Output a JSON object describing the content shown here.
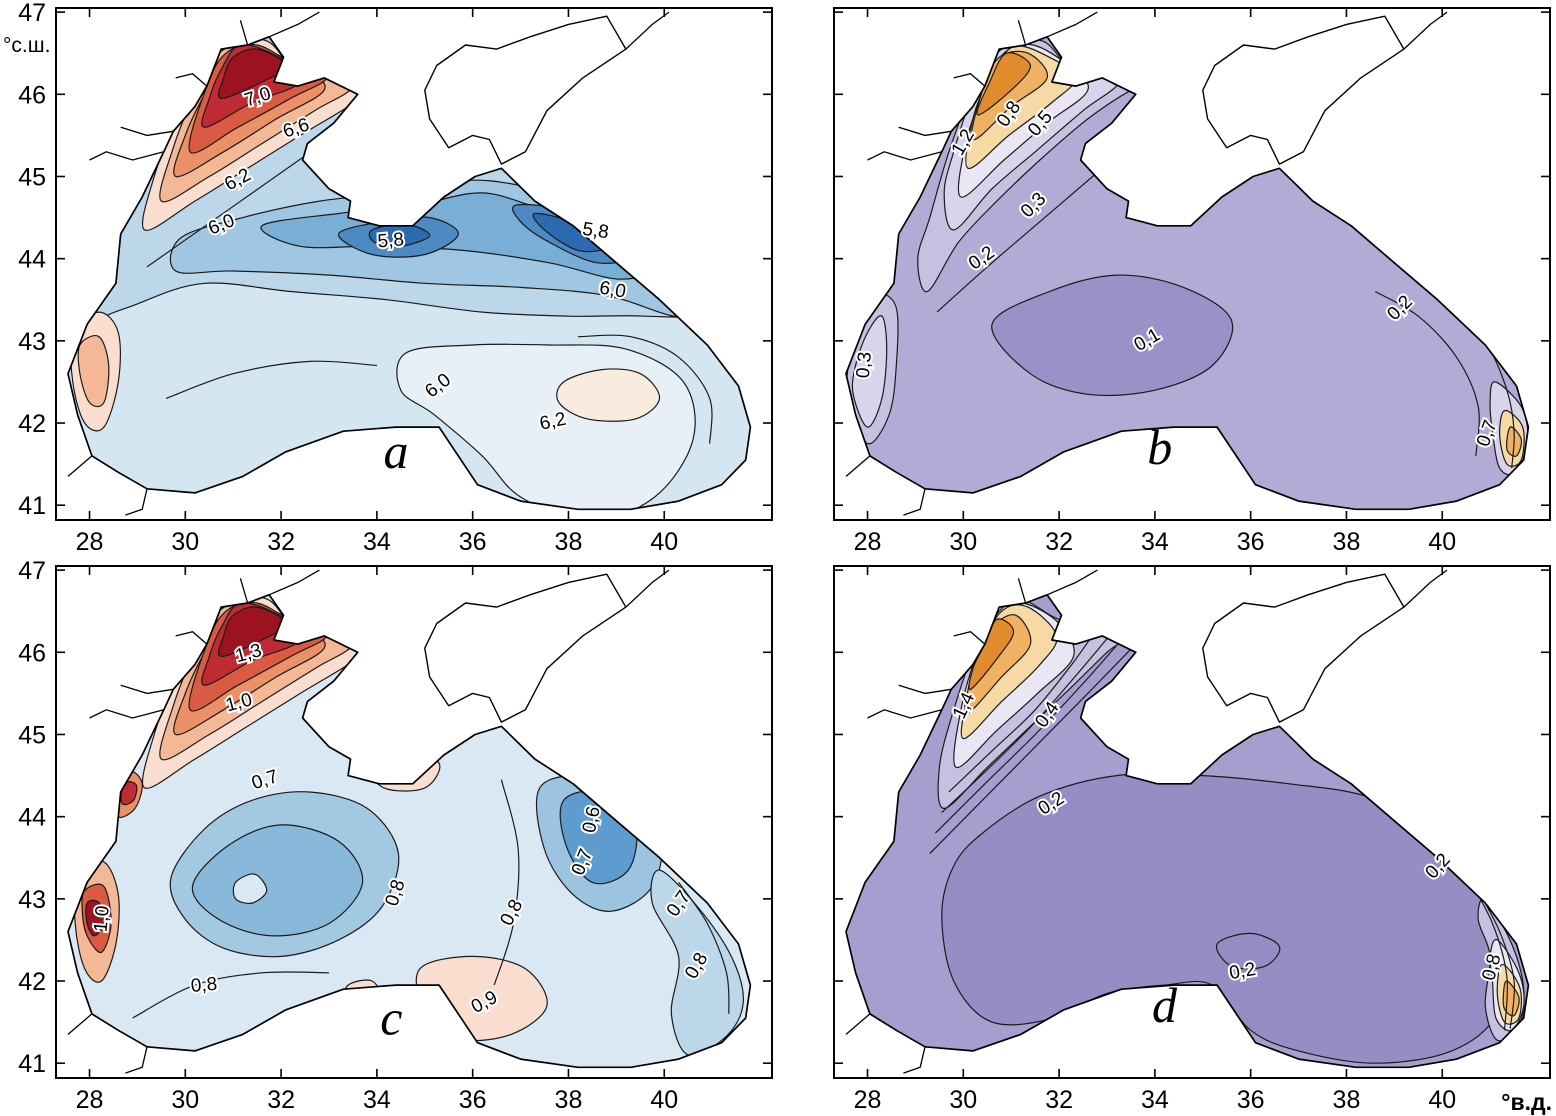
{
  "chart_data": {
    "type": "heatmap",
    "subtype": "contour-map-grid",
    "description": "Four filled-contour maps of the Black Sea region arranged in a 2x2 grid, panels a, b (top) and c, d (bottom). Panels a and c use a red(high, northwest)-to-blue diverging palette; panels b and d use an orange(high, northwest & southeast)-to-purple palette.",
    "x": {
      "label": "°в.д.",
      "ticks": [
        28,
        30,
        32,
        34,
        36,
        38,
        40
      ],
      "range": [
        27.3,
        42.25
      ]
    },
    "y": {
      "label": "°с.ш.",
      "ticks": [
        47,
        46,
        45,
        44,
        43,
        42,
        41
      ],
      "range": [
        40.82,
        47.05
      ]
    },
    "palette": {
      "a_base": "#bdd7ea",
      "a_pale": "#d5e6f3",
      "a_paler": "#e7f0f7",
      "cream": "#f8ecdf",
      "a_mid": "#9fc6e2",
      "a_deep": "#79aed6",
      "a_deeper": "#4d8ac4",
      "a_dark": "#2b6ab0",
      "pink_pale": "#f9ded0",
      "salmon_lt": "#f4b897",
      "salmon": "#ec9067",
      "red": "#da5a44",
      "red_dark": "#c02b33",
      "red_deep": "#9c1220",
      "b_base": "#b3abd6",
      "b_dark": "#9b91c9",
      "lav_lt": "#c6c0e1",
      "lav_lter": "#d8d4eb",
      "lav_pale": "#eae7f4",
      "orange_lt": "#f6d9a4",
      "orange": "#f0b262",
      "orange_dk": "#e08b2d",
      "c_base": "#dae8f3",
      "c_mid": "#a3c8e2",
      "c_inner": "#88b8da",
      "c_east": "#9cc4e0",
      "c_east_core": "#5e9ccf",
      "c_band": "#bdd7ea",
      "d_base": "#a79ed0",
      "d_inner": "#978dc5",
      "contour_line": "#1b1b1b",
      "coast": "#000000",
      "frame": "#000000"
    },
    "panels": [
      {
        "id": "a",
        "letter": "a",
        "letter_pos": [
          34.4,
          41.45
        ],
        "base": "a_base",
        "color_scheme": "red-high-NW to blue-low-center",
        "labeled_isoline_values": [
          5.8,
          6.0,
          6.2,
          6.6,
          7.0
        ],
        "show_x_labels": true,
        "show_y_labels": true,
        "show_y_unit": true,
        "show_x_unit": false,
        "contour_labels": [
          {
            "value": "7,0",
            "num": 7.0,
            "lon": 31.55,
            "lat": 45.9,
            "rot": -18
          },
          {
            "value": "6,6",
            "num": 6.6,
            "lon": 32.35,
            "lat": 45.52,
            "rot": -18
          },
          {
            "value": "6,2",
            "num": 6.2,
            "lon": 31.15,
            "lat": 44.9,
            "rot": -28
          },
          {
            "value": "6,0",
            "num": 6.0,
            "lon": 30.8,
            "lat": 44.35,
            "rot": -22
          },
          {
            "value": "5,8",
            "num": 5.8,
            "lon": 34.3,
            "lat": 44.15,
            "rot": -5
          },
          {
            "value": "5,8",
            "num": 5.8,
            "lon": 38.55,
            "lat": 44.27,
            "rot": 8
          },
          {
            "value": "6,0",
            "num": 6.0,
            "lon": 38.9,
            "lat": 43.55,
            "rot": 10
          },
          {
            "value": "6,0",
            "num": 6.0,
            "lon": 35.35,
            "lat": 42.4,
            "rot": -38
          },
          {
            "value": "6,2",
            "num": 6.2,
            "lon": 37.7,
            "lat": 41.95,
            "rot": -12
          }
        ]
      },
      {
        "id": "b",
        "letter": "b",
        "letter_pos": [
          34.1,
          41.5
        ],
        "base": "b_base",
        "color_scheme": "orange-high-NW/SE to purple-low-center",
        "labeled_isoline_values": [
          0.1,
          0.2,
          0.3,
          0.5,
          0.7,
          0.8,
          1.2
        ],
        "show_x_labels": true,
        "show_y_labels": false,
        "show_y_unit": false,
        "show_x_unit": false,
        "contour_labels": [
          {
            "value": "0,8",
            "num": 0.8,
            "lon": 31.05,
            "lat": 45.72,
            "rot": -55
          },
          {
            "value": "1,2",
            "num": 1.2,
            "lon": 30.1,
            "lat": 45.38,
            "rot": -60
          },
          {
            "value": "0,5",
            "num": 0.5,
            "lon": 31.7,
            "lat": 45.6,
            "rot": -50
          },
          {
            "value": "0,3",
            "num": 0.3,
            "lon": 31.55,
            "lat": 44.6,
            "rot": -45
          },
          {
            "value": "0,2",
            "num": 0.2,
            "lon": 30.45,
            "lat": 43.95,
            "rot": -35
          },
          {
            "value": "0,3",
            "num": 0.3,
            "lon": 28.05,
            "lat": 42.7,
            "rot": -85
          },
          {
            "value": "0,1",
            "num": 0.1,
            "lon": 33.9,
            "lat": 42.95,
            "rot": -30
          },
          {
            "value": "0,2",
            "num": 0.2,
            "lon": 39.2,
            "lat": 43.35,
            "rot": -45
          },
          {
            "value": "0,7",
            "num": 0.7,
            "lon": 41.05,
            "lat": 41.85,
            "rot": -70
          }
        ]
      },
      {
        "id": "c",
        "letter": "c",
        "letter_pos": [
          34.3,
          41.35
        ],
        "base": "c_base",
        "color_scheme": "red-high-NW to blue-low-center",
        "labeled_isoline_values": [
          0.6,
          0.7,
          0.8,
          0.9,
          1.0,
          1.3
        ],
        "show_x_labels": true,
        "show_y_labels": true,
        "show_y_unit": false,
        "show_x_unit": false,
        "contour_labels": [
          {
            "value": "1,3",
            "num": 1.3,
            "lon": 31.35,
            "lat": 45.92,
            "rot": -15
          },
          {
            "value": "1,0",
            "num": 1.0,
            "lon": 31.15,
            "lat": 45.32,
            "rot": -15
          },
          {
            "value": "0,7",
            "num": 0.7,
            "lon": 31.7,
            "lat": 44.38,
            "rot": -18
          },
          {
            "value": "0,8",
            "num": 0.8,
            "lon": 34.5,
            "lat": 43.05,
            "rot": -72
          },
          {
            "value": "0,6",
            "num": 0.6,
            "lon": 38.6,
            "lat": 43.95,
            "rot": -78
          },
          {
            "value": "0,7",
            "num": 0.7,
            "lon": 38.4,
            "lat": 43.42,
            "rot": -68
          },
          {
            "value": "0,8",
            "num": 0.8,
            "lon": 36.92,
            "lat": 42.8,
            "rot": -62
          },
          {
            "value": "0,7",
            "num": 0.7,
            "lon": 40.4,
            "lat": 42.9,
            "rot": -55
          },
          {
            "value": "0,8",
            "num": 0.8,
            "lon": 40.78,
            "lat": 42.15,
            "rot": -60
          },
          {
            "value": "0,8",
            "num": 0.8,
            "lon": 30.4,
            "lat": 41.88,
            "rot": -5
          },
          {
            "value": "0,9",
            "num": 0.9,
            "lon": 36.3,
            "lat": 41.68,
            "rot": -28
          },
          {
            "value": "1,0",
            "num": 1.0,
            "lon": 28.38,
            "lat": 42.75,
            "rot": -85
          }
        ]
      },
      {
        "id": "d",
        "letter": "d",
        "letter_pos": [
          34.2,
          41.5
        ],
        "base": "d_base",
        "color_scheme": "orange-high-NW/SE to purple-low-center",
        "labeled_isoline_values": [
          0.2,
          0.4,
          0.8,
          1.4
        ],
        "show_x_labels": true,
        "show_y_labels": false,
        "show_y_unit": false,
        "show_x_unit": true,
        "contour_labels": [
          {
            "value": "1,4",
            "num": 1.4,
            "lon": 30.12,
            "lat": 45.32,
            "rot": -65
          },
          {
            "value": "0,4",
            "num": 0.4,
            "lon": 31.85,
            "lat": 45.2,
            "rot": -55
          },
          {
            "value": "0,2",
            "num": 0.2,
            "lon": 31.9,
            "lat": 44.1,
            "rot": -32
          },
          {
            "value": "0,2",
            "num": 0.2,
            "lon": 35.85,
            "lat": 42.05,
            "rot": -10
          },
          {
            "value": "0,2",
            "num": 0.2,
            "lon": 40.0,
            "lat": 43.35,
            "rot": -48
          },
          {
            "value": "0,8",
            "num": 0.8,
            "lon": 41.15,
            "lat": 42.15,
            "rot": -75
          }
        ]
      }
    ]
  }
}
